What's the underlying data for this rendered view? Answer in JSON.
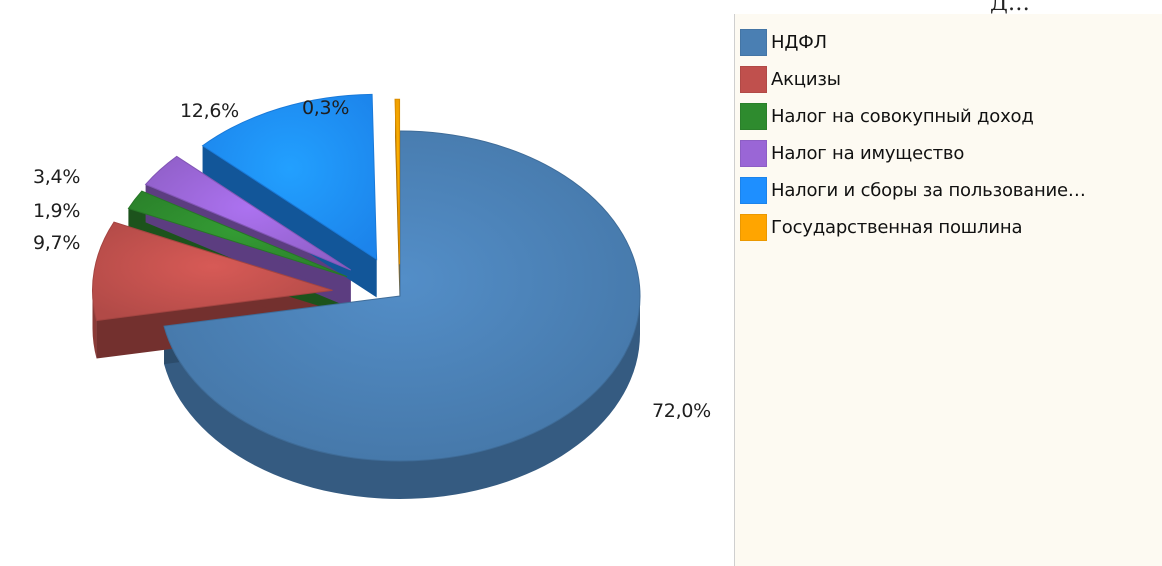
{
  "chart_data": {
    "type": "pie",
    "style": "3d-exploded",
    "categories": [
      "НДФЛ",
      "Акцизы",
      "Налог на совокупный доход",
      "Налог на имущество",
      "Налоги и сборы за пользование…",
      "Государственная пошлина"
    ],
    "values": [
      72.0,
      9.7,
      1.9,
      3.4,
      12.6,
      0.3
    ],
    "labels": [
      "72,0%",
      "9,7%",
      "1,9%",
      "3,4%",
      "12,6%",
      "0,3%"
    ],
    "colors": [
      "#4a7fb3",
      "#c0504d",
      "#2e8b2e",
      "#9a66d6",
      "#1e8fff",
      "#ffa500"
    ],
    "legend_position": "right"
  },
  "page_fragment": "Д…"
}
